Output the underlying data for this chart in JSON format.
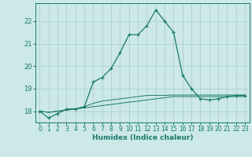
{
  "xlabel": "Humidex (Indice chaleur)",
  "x_values": [
    0,
    1,
    2,
    3,
    4,
    5,
    6,
    7,
    8,
    9,
    10,
    11,
    12,
    13,
    14,
    15,
    16,
    17,
    18,
    19,
    20,
    21,
    22,
    23
  ],
  "y_main": [
    18.0,
    17.7,
    17.9,
    18.1,
    18.1,
    18.2,
    19.3,
    19.5,
    19.9,
    20.6,
    21.4,
    21.4,
    21.8,
    22.5,
    22.0,
    21.5,
    19.6,
    19.0,
    18.55,
    18.5,
    18.55,
    18.65,
    18.7,
    18.7
  ],
  "y_line1": [
    18.0,
    17.95,
    18.0,
    18.05,
    18.1,
    18.15,
    18.2,
    18.25,
    18.3,
    18.35,
    18.4,
    18.45,
    18.5,
    18.55,
    18.6,
    18.65,
    18.65,
    18.65,
    18.65,
    18.65,
    18.65,
    18.65,
    18.65,
    18.65
  ],
  "y_line2": [
    18.0,
    17.95,
    18.0,
    18.05,
    18.1,
    18.2,
    18.35,
    18.45,
    18.5,
    18.55,
    18.6,
    18.65,
    18.7,
    18.7,
    18.7,
    18.72,
    18.72,
    18.72,
    18.72,
    18.72,
    18.72,
    18.72,
    18.72,
    18.72
  ],
  "line_color": "#1a7a6e",
  "bg_color": "#cce8e8",
  "grid_color": "#aed0d0",
  "ylim": [
    17.5,
    22.8
  ],
  "yticks": [
    18,
    19,
    20,
    21,
    22
  ],
  "xticks": [
    0,
    1,
    2,
    3,
    4,
    5,
    6,
    7,
    8,
    9,
    10,
    11,
    12,
    13,
    14,
    15,
    16,
    17,
    18,
    19,
    20,
    21,
    22,
    23
  ]
}
